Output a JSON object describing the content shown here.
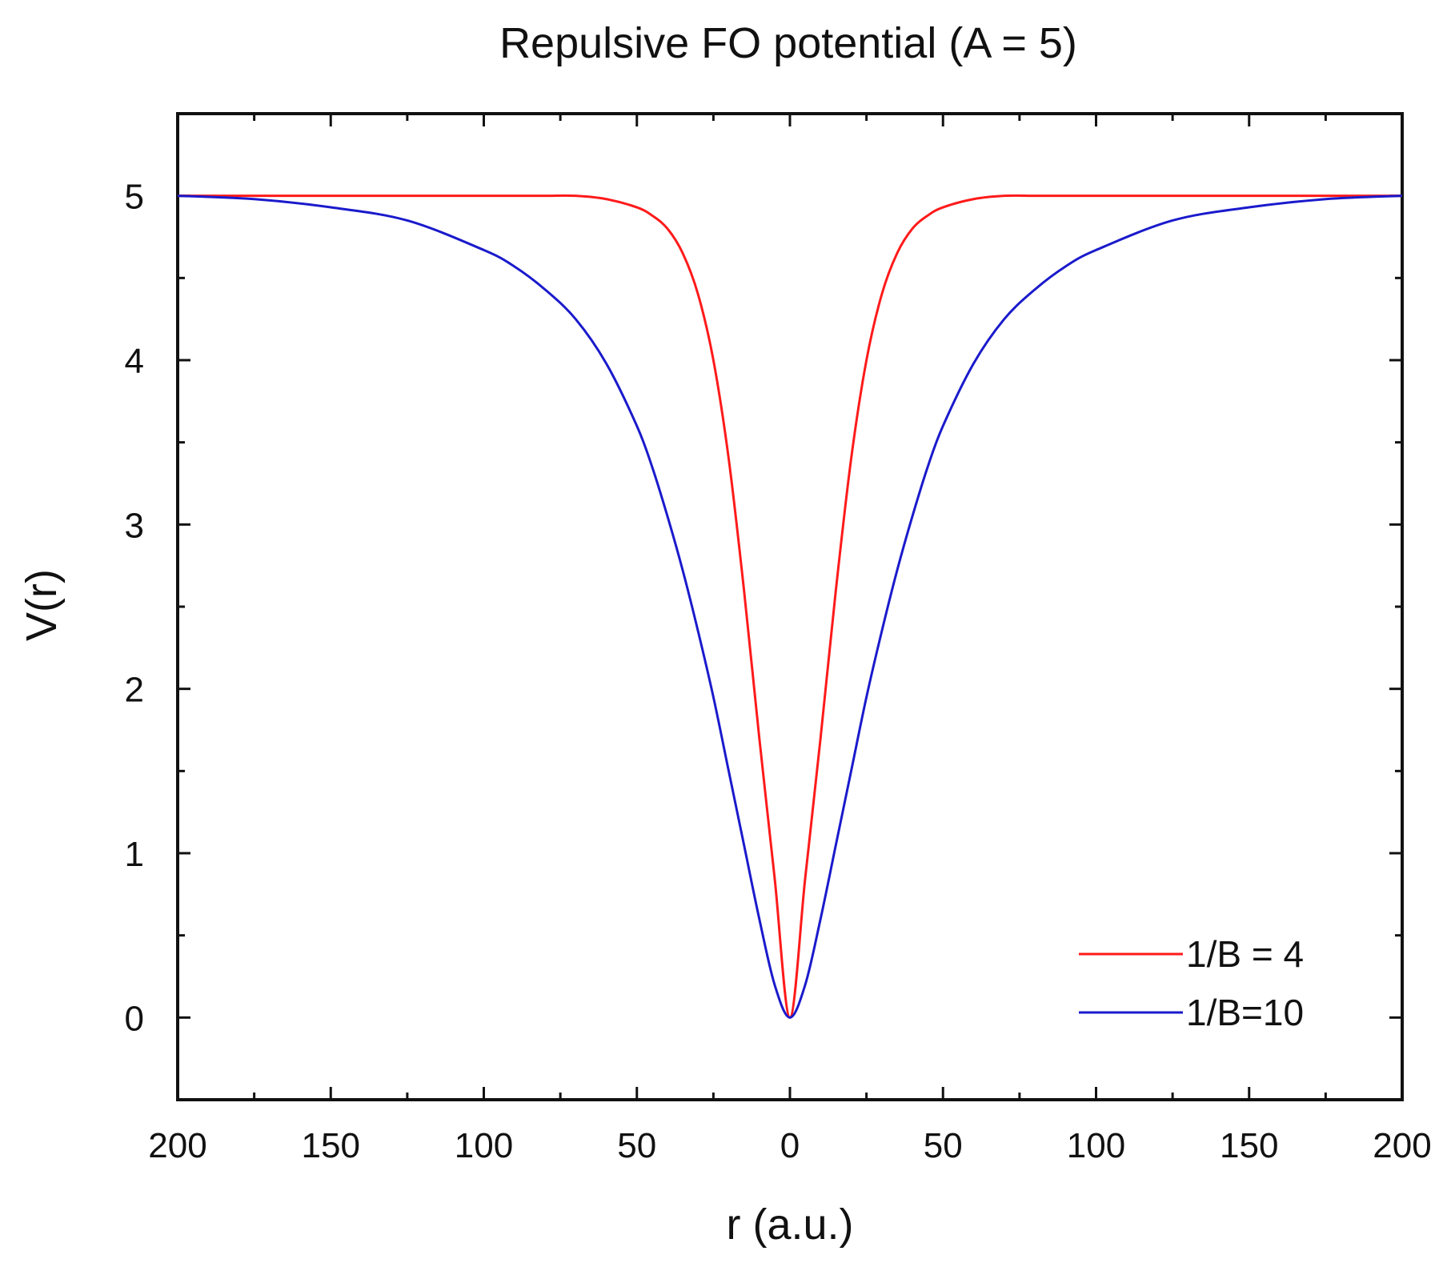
{
  "chart_data": {
    "type": "line",
    "title": "Repulsive FO potential (A = 5)",
    "xlabel": "r (a.u.)",
    "ylabel": "V(r)",
    "xlim": [
      -200,
      200
    ],
    "ylim": [
      -0.5,
      5.5
    ],
    "x_ticks": [
      -200,
      -150,
      -100,
      -50,
      0,
      50,
      100,
      150,
      200
    ],
    "x_tick_labels": [
      "200",
      "150",
      "100",
      "50",
      "0",
      "50",
      "100",
      "150",
      "200"
    ],
    "y_ticks": [
      0,
      1,
      2,
      3,
      4,
      5
    ],
    "y_tick_labels": [
      "0",
      "1",
      "2",
      "3",
      "4",
      "5"
    ],
    "grid": false,
    "legend_position": "bottom-right",
    "x": [
      -200,
      -175,
      -150,
      -125,
      -100,
      -90,
      -80,
      -70,
      -60,
      -50,
      -45,
      -40,
      -35,
      -30,
      -25,
      -20,
      -15,
      -10,
      -5,
      0,
      5,
      10,
      15,
      20,
      25,
      30,
      35,
      40,
      45,
      50,
      60,
      70,
      80,
      90,
      100,
      125,
      150,
      175,
      200
    ],
    "series": [
      {
        "name": "1/B = 4",
        "color": "#ff1a1a",
        "values": [
          5.0,
          5.0,
          5.0,
          5.0,
          5.0,
          5.0,
          5.0,
          5.0,
          4.98,
          4.93,
          4.88,
          4.8,
          4.65,
          4.4,
          4.0,
          3.4,
          2.6,
          1.7,
          0.85,
          0.0,
          0.85,
          1.7,
          2.6,
          3.4,
          4.0,
          4.4,
          4.65,
          4.8,
          4.88,
          4.93,
          4.98,
          5.0,
          5.0,
          5.0,
          5.0,
          5.0,
          5.0,
          5.0,
          5.0
        ]
      },
      {
        "name": "1/B=10",
        "color": "#1a1acc",
        "values": [
          5.0,
          4.98,
          4.93,
          4.85,
          4.67,
          4.57,
          4.43,
          4.25,
          3.98,
          3.6,
          3.35,
          3.05,
          2.72,
          2.35,
          1.95,
          1.5,
          1.05,
          0.6,
          0.2,
          0.0,
          0.2,
          0.6,
          1.05,
          1.5,
          1.95,
          2.35,
          2.72,
          3.05,
          3.35,
          3.6,
          3.98,
          4.25,
          4.43,
          4.57,
          4.67,
          4.85,
          4.93,
          4.98,
          5.0
        ]
      }
    ]
  }
}
